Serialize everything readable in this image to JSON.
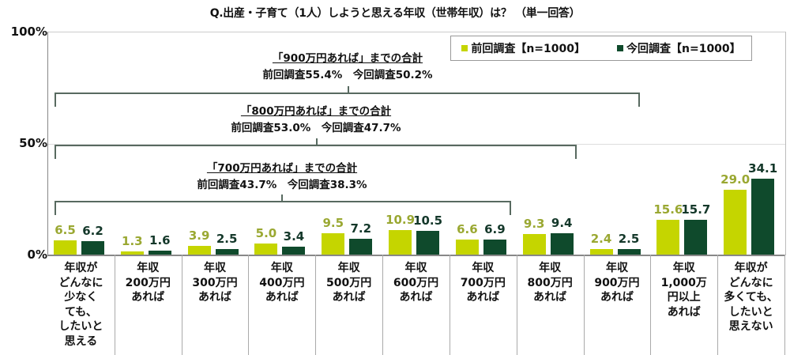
{
  "chart_data": {
    "type": "bar",
    "title": "Q.出産・子育て（1人）しようと思える年収（世帯年収）は？ （単一回答）",
    "xlabel": "",
    "ylabel": "",
    "ylim": [
      0,
      100
    ],
    "yticks": [
      "0%",
      "50%",
      "100%"
    ],
    "grid": true,
    "legend_position": "top-right",
    "categories": [
      "年収が\nどんなに\n少なく\nても、\nしたいと\n思える",
      "年収\n200万円\nあれば",
      "年収\n300万円\nあれば",
      "年収\n400万円\nあれば",
      "年収\n500万円\nあれば",
      "年収\n600万円\nあれば",
      "年収\n700万円\nあれば",
      "年収\n800万円\nあれば",
      "年収\n900万円\nあれば",
      "年収\n1,000万\n円以上\nあれば",
      "年収が\nどんなに\n多くても、\nしたいと\n思えない"
    ],
    "series": [
      {
        "name": "前回調査【n=1000】",
        "color": "#c5d500",
        "label_color": "#9aa832",
        "values": [
          6.5,
          1.3,
          3.9,
          5.0,
          9.5,
          10.9,
          6.6,
          9.3,
          2.4,
          15.6,
          29.0
        ]
      },
      {
        "name": "今回調査【n=1000】",
        "color": "#0f4a2c",
        "label_color": "#14382a",
        "values": [
          6.2,
          1.6,
          2.5,
          3.4,
          7.2,
          10.5,
          6.9,
          9.4,
          2.5,
          15.7,
          34.1
        ]
      }
    ],
    "annotations": [
      {
        "heading": "「900万円あれば」までの合計",
        "text": "前回調査55.4%　今回調査50.2%"
      },
      {
        "heading": "「800万円あれば」までの合計",
        "text": "前回調査53.0%　今回調査47.7%"
      },
      {
        "heading": "「700万円あれば」までの合計",
        "text": "前回調査43.7%　今回調査38.3%"
      }
    ]
  }
}
